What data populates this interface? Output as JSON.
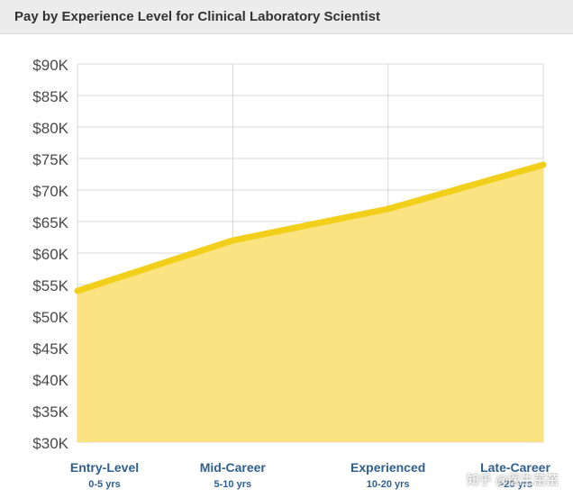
{
  "chart_data": {
    "type": "area",
    "title": "Pay by Experience Level for Clinical Laboratory Scientist",
    "xlabel": "",
    "ylabel": "",
    "categories": [
      {
        "name": "Entry-Level",
        "range": "0-5 yrs"
      },
      {
        "name": "Mid-Career",
        "range": "5-10 yrs"
      },
      {
        "name": "Experienced",
        "range": "10-20 yrs"
      },
      {
        "name": "Late-Career",
        "range": ">20 yrs"
      }
    ],
    "values": [
      54000,
      62000,
      67000,
      74000
    ],
    "ylim": [
      30000,
      90000
    ],
    "yticks": [
      "$30K",
      "$35K",
      "$40K",
      "$45K",
      "$50K",
      "$55K",
      "$60K",
      "$65K",
      "$70K",
      "$75K",
      "$80K",
      "$85K",
      "$90K"
    ],
    "grid": true,
    "colors": {
      "line": "#f2cf1a",
      "fill": "#fbe27a",
      "label": "#2e5f8f",
      "grid": "#d8d8d8"
    }
  },
  "watermark": "知乎 @医生茁茁"
}
